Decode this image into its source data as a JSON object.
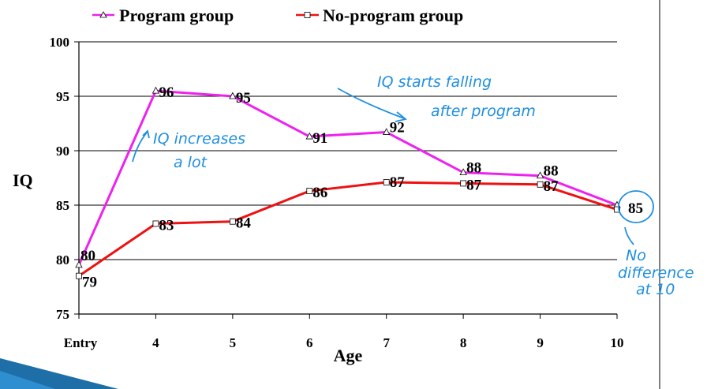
{
  "chart_data": {
    "type": "line",
    "categories": [
      "Entry",
      "4",
      "5",
      "6",
      "7",
      "8",
      "9",
      "10"
    ],
    "series": [
      {
        "name": "Program group",
        "color": "#ee22ee",
        "marker": "triangle",
        "values": [
          79.5,
          95.5,
          95,
          91.3,
          91.7,
          88,
          87.7,
          85
        ],
        "labels": [
          "80",
          "96",
          "95",
          "91",
          "92",
          "88",
          "88",
          "85"
        ]
      },
      {
        "name": "No-program group",
        "color": "#ee1111",
        "marker": "square",
        "values": [
          78.5,
          83.3,
          83.5,
          86.3,
          87.1,
          87,
          86.9,
          84.6
        ],
        "labels": [
          "79",
          "83",
          "84",
          "86",
          "87",
          "87",
          "87",
          ""
        ]
      }
    ],
    "xlabel": "Age",
    "ylabel": "IQ",
    "ylim": [
      75,
      100
    ],
    "yticks": [
      "75",
      "80",
      "85",
      "90",
      "95",
      "100"
    ],
    "grid": true,
    "legend_position": "top",
    "annotations": [
      {
        "text": "IQ increases",
        "color": "#1f8fe0"
      },
      {
        "text": "a lot",
        "color": "#1f8fe0"
      },
      {
        "text": "IQ starts falling",
        "color": "#1f8fe0"
      },
      {
        "text": "after program",
        "color": "#1f8fe0"
      },
      {
        "text": "No",
        "color": "#1f8fe0"
      },
      {
        "text": "difference",
        "color": "#1f8fe0"
      },
      {
        "text": "at 10",
        "color": "#1f8fe0"
      }
    ]
  }
}
